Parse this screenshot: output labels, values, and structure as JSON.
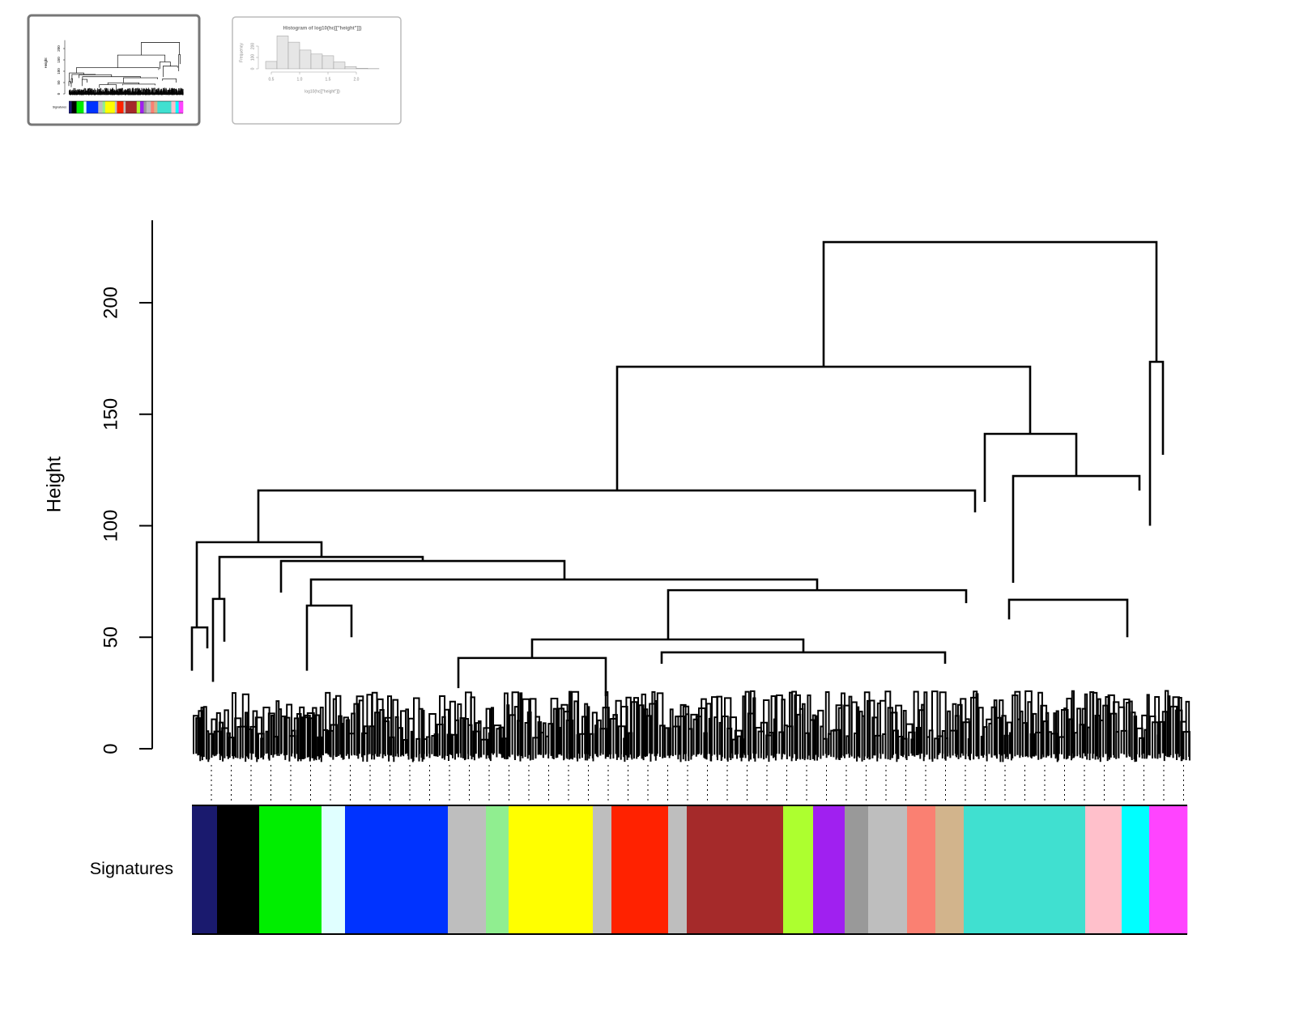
{
  "chart_data": [
    {
      "type": "dendrogram",
      "ylabel": "Height",
      "bar_label": "Signatures",
      "ylim": [
        0,
        237
      ],
      "yticks": [
        0,
        50,
        100,
        150,
        200
      ],
      "leaves": 1229,
      "links": [
        {
          "x": [
            780,
            1191
          ],
          "height": 227.2,
          "from": [
            171.3,
            173.5
          ]
        },
        {
          "x": [
            525,
            1035
          ],
          "height": 171.3,
          "from": [
            115.8,
            141.2
          ]
        },
        {
          "x": [
            82,
            967
          ],
          "height": 115.8,
          "from": [
            92.6,
            106
          ]
        },
        {
          "x": [
            979,
            1092
          ],
          "height": 141.2,
          "from": [
            110.7,
            122.3
          ]
        },
        {
          "x": [
            1014,
            1170
          ],
          "height": 122.3,
          "from": [
            74.4,
            115.8
          ]
        },
        {
          "x": [
            1183,
            1199
          ],
          "height": 173.5,
          "from": [
            100,
            131.8
          ]
        },
        {
          "x": [
            6,
            160
          ],
          "height": 92.6,
          "from": [
            54.4,
            86
          ]
        },
        {
          "x": [
            34,
            285
          ],
          "height": 86,
          "from": [
            67.2,
            84.2
          ]
        },
        {
          "x": [
            110,
            460
          ],
          "height": 84.2,
          "from": [
            70,
            75.9
          ]
        },
        {
          "x": [
            147,
            772
          ],
          "height": 75.9,
          "from": [
            64.2,
            71.1
          ]
        },
        {
          "x": [
            588,
            956
          ],
          "height": 71.1,
          "from": [
            49,
            65.3
          ]
        },
        {
          "x": [
            420,
            755
          ],
          "height": 49,
          "from": [
            40.7,
            43.2
          ]
        },
        {
          "x": [
            329,
            511
          ],
          "height": 40.7,
          "from": [
            27.2,
            23.6
          ]
        },
        {
          "x": [
            580,
            930
          ],
          "height": 43.2,
          "from": [
            38.1,
            38.1
          ]
        },
        {
          "x": [
            142,
            197
          ],
          "height": 64.2,
          "from": [
            35,
            50
          ]
        },
        {
          "x": [
            1009,
            1155
          ],
          "height": 66.8,
          "from": [
            58,
            50
          ]
        },
        {
          "x": [
            26,
            40
          ],
          "height": 67.2,
          "from": [
            30,
            48
          ]
        },
        {
          "x": [
            0,
            19
          ],
          "height": 54.4,
          "from": [
            35,
            45
          ]
        }
      ],
      "modules": {
        "sizes": [
          31,
          52,
          77,
          29,
          127,
          47,
          28,
          104,
          23,
          70,
          23,
          119,
          37,
          39,
          29,
          48,
          35,
          35,
          150,
          45,
          34,
          47
        ],
        "colors": [
          "#1a1a6e",
          "#000000",
          "#00ee00",
          "#e0ffff",
          "#0033ff",
          "#bebebe",
          "#90ee90",
          "#ffff00",
          "#bebebe",
          "#ff2200",
          "#bebebe",
          "#a52a2a",
          "#adff2f",
          "#a020f0",
          "#999999",
          "#bebebe",
          "#fa8072",
          "#d2b48c",
          "#40e0d0",
          "#ffc0cb",
          "#00ffff",
          "#ff44ff"
        ]
      }
    },
    {
      "type": "histogram",
      "title": "Histogram of log10(hc[[\"height\"]])",
      "xlabel": "log10(hc[[\"height\"]])",
      "ylabel": "Frequency",
      "bins": [
        0.4,
        0.6,
        0.8,
        1.0,
        1.2,
        1.4,
        1.6,
        1.8,
        2.0,
        2.2,
        2.4
      ],
      "counts": [
        65,
        290,
        235,
        165,
        130,
        115,
        60,
        20,
        5,
        2
      ],
      "color": "#e6e6e6",
      "xlim": [
        0.4,
        2.4
      ],
      "ylim": [
        0,
        300
      ],
      "xticks": [
        0.5,
        {
          "value": 1,
          "label": "1.0"
        },
        1.5,
        {
          "value": 2,
          "label": "2.0"
        }
      ],
      "yticks": [
        0,
        100,
        200
      ]
    }
  ]
}
